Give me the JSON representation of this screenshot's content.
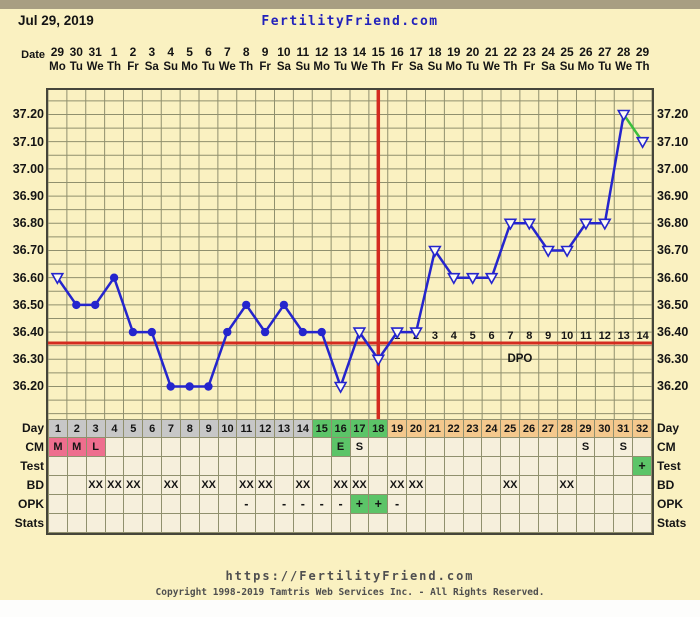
{
  "header": {
    "date": "Jul 29, 2019",
    "site": "FertilityFriend.com"
  },
  "axis": {
    "date_label": "Date",
    "dates": [
      "29",
      "30",
      "31",
      "1",
      "2",
      "3",
      "4",
      "5",
      "6",
      "7",
      "8",
      "9",
      "10",
      "11",
      "12",
      "13",
      "14",
      "15",
      "16",
      "17",
      "18",
      "19",
      "20",
      "21",
      "22",
      "23",
      "24",
      "25",
      "26",
      "27",
      "28",
      "29"
    ],
    "weekdays": [
      "Mo",
      "Tu",
      "We",
      "Th",
      "Fr",
      "Sa",
      "Su",
      "Mo",
      "Tu",
      "We",
      "Th",
      "Fr",
      "Sa",
      "Su",
      "Mo",
      "Tu",
      "We",
      "Th",
      "Fr",
      "Sa",
      "Su",
      "Mo",
      "Tu",
      "We",
      "Th",
      "Fr",
      "Sa",
      "Su",
      "Mo",
      "Tu",
      "We",
      "Th"
    ]
  },
  "chart_data": {
    "type": "line",
    "days": [
      1,
      2,
      3,
      4,
      5,
      6,
      7,
      8,
      9,
      10,
      11,
      12,
      13,
      14,
      15,
      16,
      17,
      18,
      19,
      20,
      21,
      22,
      23,
      24,
      25,
      26,
      27,
      28,
      29,
      30,
      31,
      32
    ],
    "temps_celsius": [
      36.6,
      36.5,
      36.5,
      36.6,
      36.4,
      36.4,
      36.2,
      36.2,
      36.2,
      36.4,
      36.5,
      36.4,
      36.5,
      36.4,
      36.4,
      36.2,
      36.4,
      36.3,
      36.4,
      36.4,
      36.7,
      36.6,
      36.6,
      36.6,
      36.8,
      36.8,
      36.7,
      36.7,
      36.8,
      36.8,
      37.2,
      37.1
    ],
    "markers": [
      "open",
      "filled",
      "filled",
      "filled",
      "filled",
      "filled",
      "filled",
      "filled",
      "filled",
      "filled",
      "filled",
      "filled",
      "filled",
      "filled",
      "filled",
      "open",
      "open",
      "open",
      "open",
      "open",
      "open",
      "open",
      "open",
      "open",
      "open",
      "open",
      "open",
      "open",
      "open",
      "open",
      "open",
      "open"
    ],
    "coverline_temp": 36.36,
    "ovulation_line_day": 18,
    "green_segment_days": [
      31,
      32
    ],
    "dpo_text": "DPO",
    "dpo_start_day": 19,
    "dpo_numbers": [
      "1",
      "2",
      "3",
      "4",
      "5",
      "6",
      "7",
      "8",
      "9",
      "10",
      "11",
      "12",
      "13",
      "14"
    ],
    "y_ticks": [
      "37.20",
      "37.10",
      "37.00",
      "36.90",
      "36.80",
      "36.70",
      "36.60",
      "36.50",
      "36.40",
      "36.30",
      "36.20"
    ],
    "ylim": [
      36.1,
      37.29
    ],
    "grid_step": 0.05,
    "grid": "on",
    "legend": "none"
  },
  "table": {
    "day_row": {
      "label": "Day",
      "values": [
        "1",
        "2",
        "3",
        "4",
        "5",
        "6",
        "7",
        "8",
        "9",
        "10",
        "11",
        "12",
        "13",
        "14",
        "15",
        "16",
        "17",
        "18",
        "19",
        "20",
        "21",
        "22",
        "23",
        "24",
        "25",
        "26",
        "27",
        "28",
        "29",
        "30",
        "31",
        "32"
      ],
      "bg_ranges": [
        {
          "from": 1,
          "to": 14,
          "bg": "gray"
        },
        {
          "from": 15,
          "to": 18,
          "bg": "green"
        },
        {
          "from": 19,
          "to": 32,
          "bg": "orange"
        }
      ]
    },
    "rows": [
      {
        "id": "cm",
        "label": "CM",
        "marks": {
          "1": {
            "text": "M",
            "bg": "pink"
          },
          "2": {
            "text": "M",
            "bg": "pink"
          },
          "3": {
            "text": "L",
            "bg": "pink"
          },
          "16": {
            "text": "E",
            "bg": "green"
          },
          "17": {
            "text": "S"
          },
          "29": {
            "text": "S"
          },
          "31": {
            "text": "S"
          }
        }
      },
      {
        "id": "test",
        "label": "Test",
        "marks": {
          "32": {
            "text": "+",
            "bg": "green"
          }
        }
      },
      {
        "id": "bd",
        "label": "BD",
        "marks": {
          "3": {
            "text": "XX"
          },
          "4": {
            "text": "XX"
          },
          "5": {
            "text": "XX"
          },
          "7": {
            "text": "XX"
          },
          "9": {
            "text": "XX"
          },
          "11": {
            "text": "XX"
          },
          "12": {
            "text": "XX"
          },
          "14": {
            "text": "XX"
          },
          "16": {
            "text": "XX"
          },
          "17": {
            "text": "XX"
          },
          "19": {
            "text": "XX"
          },
          "20": {
            "text": "XX"
          },
          "25": {
            "text": "XX"
          },
          "28": {
            "text": "XX"
          }
        }
      },
      {
        "id": "opk",
        "label": "OPK",
        "marks": {
          "11": {
            "text": "-"
          },
          "13": {
            "text": "-"
          },
          "14": {
            "text": "-"
          },
          "15": {
            "text": "-"
          },
          "16": {
            "text": "-"
          },
          "17": {
            "text": "+",
            "bg": "green"
          },
          "18": {
            "text": "+",
            "bg": "green"
          },
          "19": {
            "text": "-"
          }
        }
      },
      {
        "id": "stats",
        "label": "Stats",
        "marks": {}
      }
    ]
  },
  "footer": {
    "url": "https://FertilityFriend.com",
    "copyright": "Copyright 1998-2019 Tamtris Web Services Inc. - All Rights Reserved."
  },
  "colors": {
    "background": "#FAF1C1",
    "cell_background": "#F6EFDC",
    "grid_line": "#90906E",
    "temp_line_blue": "#2525CD",
    "rise_line_green": "#3DBE3D",
    "cover_line_red": "#D42B20",
    "day_past_gray": "#C7C7C7",
    "fertile_green": "#5CC468",
    "luteal_orange": "#F4C88D",
    "menses_pink": "#EE6E8E",
    "site_blue": "#2222BB",
    "footer_gray": "#4F4F4F"
  }
}
